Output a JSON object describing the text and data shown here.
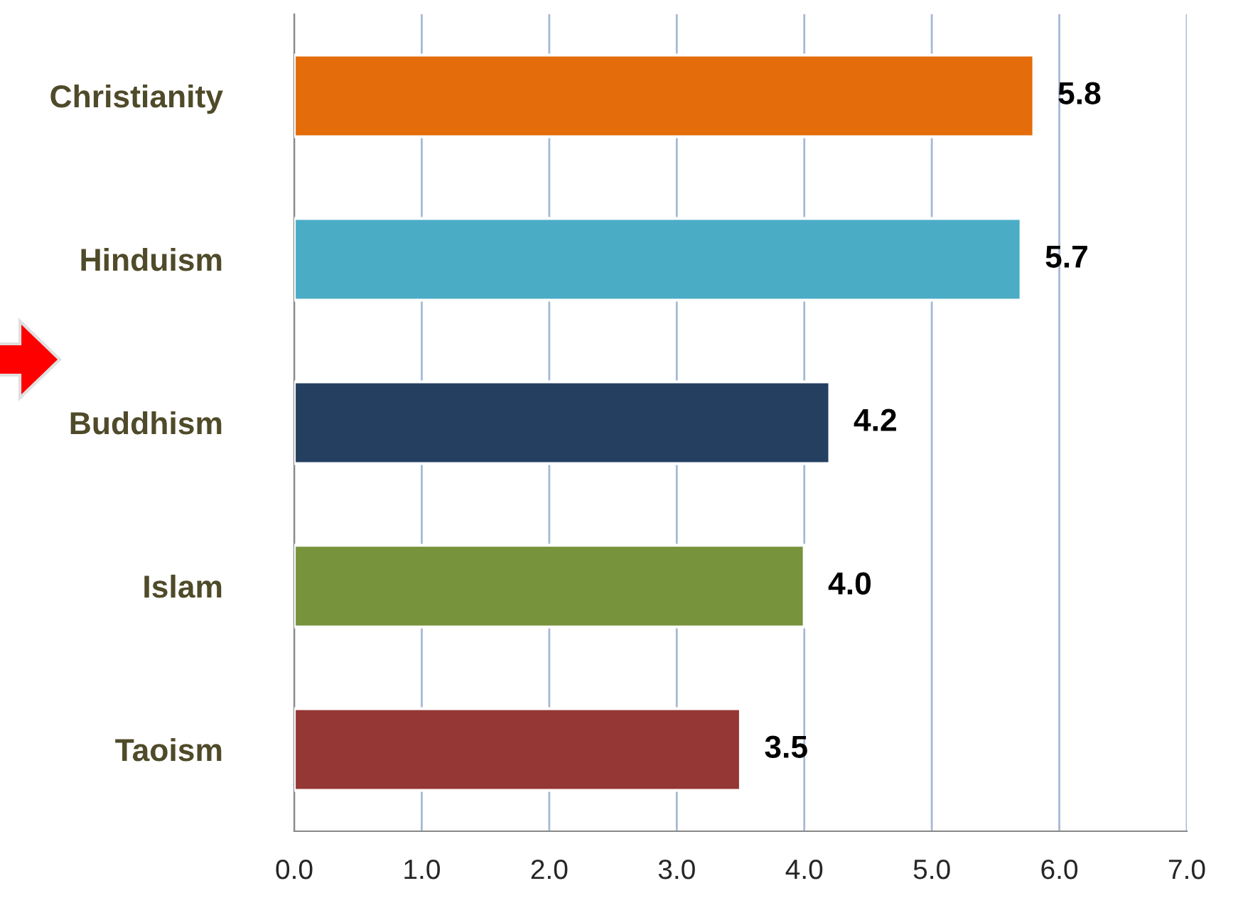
{
  "chart_data": {
    "type": "bar",
    "orientation": "horizontal",
    "categories": [
      "Christianity",
      "Hinduism",
      "Buddhism",
      "Islam",
      "Taoism"
    ],
    "values": [
      5.8,
      5.7,
      4.2,
      4.0,
      3.5
    ],
    "colors": [
      "#e46c0a",
      "#4bacc6",
      "#243f60",
      "#77933c",
      "#953735"
    ],
    "xlim": [
      0,
      7
    ],
    "xticks": [
      {
        "value": 0,
        "label": "0.0"
      },
      {
        "value": 1,
        "label": "1.0"
      },
      {
        "value": 2,
        "label": "2.0"
      },
      {
        "value": 3,
        "label": "3.0"
      },
      {
        "value": 4,
        "label": "4.0"
      },
      {
        "value": 5,
        "label": "5.0"
      },
      {
        "value": 6,
        "label": "6.0"
      },
      {
        "value": 7,
        "label": "7.0"
      }
    ],
    "grid": "x",
    "value_labels": [
      "5.8",
      "5.7",
      "4.2",
      "4.0",
      "3.5"
    ]
  }
}
